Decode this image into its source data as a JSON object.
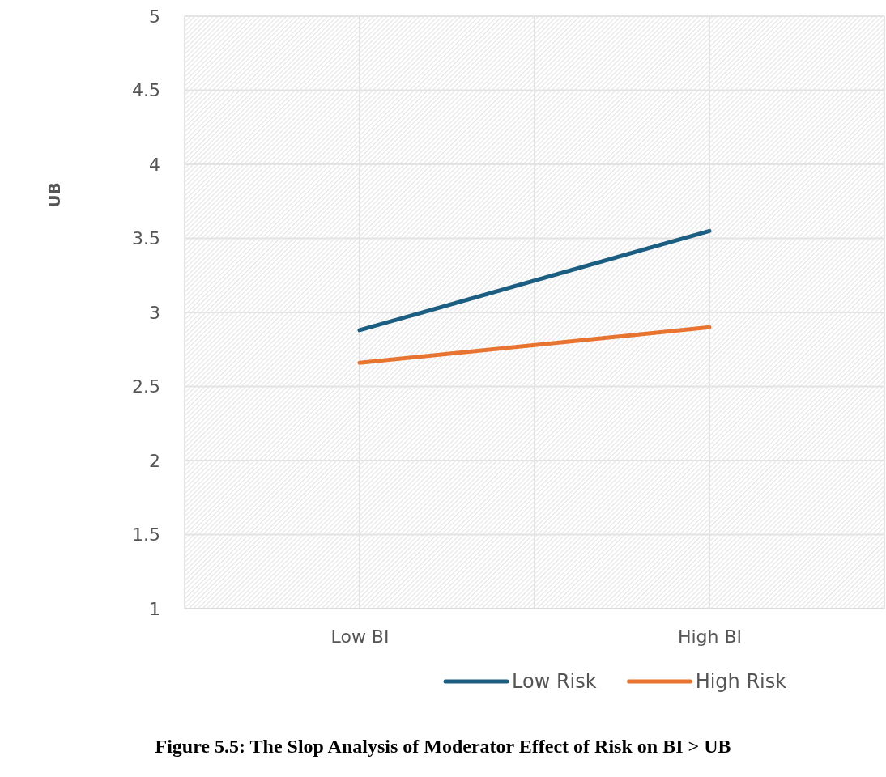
{
  "chart_data": {
    "type": "line",
    "ylabel": "UB",
    "categories": [
      "Low BI",
      "High BI"
    ],
    "series": [
      {
        "name": "Low Risk",
        "color": "#1b5e82",
        "values": [
          2.88,
          3.55
        ]
      },
      {
        "name": "High Risk",
        "color": "#e87431",
        "values": [
          2.66,
          2.9
        ]
      }
    ],
    "ylim": [
      1,
      5
    ],
    "yticks": [
      1,
      1.5,
      2,
      2.5,
      3,
      3.5,
      4,
      4.5,
      5
    ],
    "grid": true,
    "legend": "bottom",
    "line_style": "solid",
    "marker": "none",
    "annotations": [
      "Figure 5.5: The Slop Analysis of Moderator Effect of Risk on BI > UB"
    ]
  }
}
